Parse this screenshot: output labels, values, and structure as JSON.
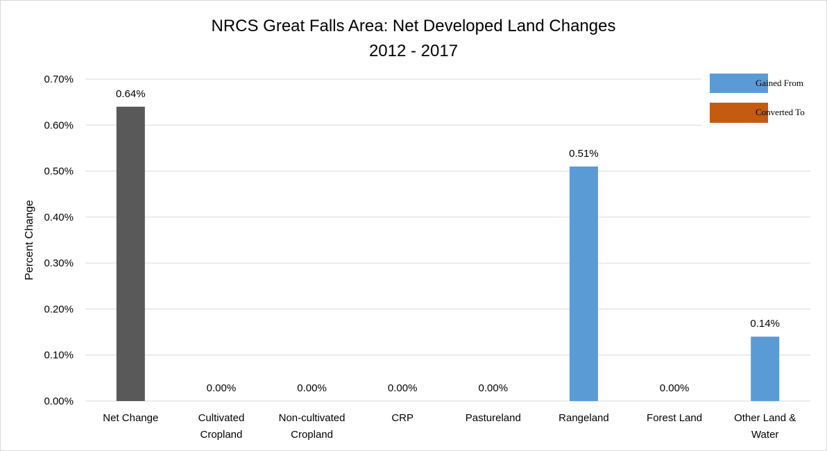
{
  "chart_data": {
    "type": "bar",
    "title": "NRCS Great Falls Area: Net Developed Land Changes",
    "subtitle": "2012 - 2017",
    "xlabel": "",
    "ylabel": "Percent Change",
    "ylim": [
      0,
      0.7
    ],
    "yticks": [
      0,
      0.1,
      0.2,
      0.3,
      0.4,
      0.5,
      0.6,
      0.7
    ],
    "ytick_labels": [
      "0.00%",
      "0.10%",
      "0.20%",
      "0.30%",
      "0.40%",
      "0.50%",
      "0.60%",
      "0.70%"
    ],
    "grid": true,
    "legend_position": "top-right",
    "legend": [
      {
        "name": "Gained From",
        "color": "#5b9bd5"
      },
      {
        "name": "Converted To",
        "color": "#c55a11"
      }
    ],
    "categories": [
      [
        "Net Change"
      ],
      [
        "Cultivated",
        "Cropland"
      ],
      [
        "Non-cultivated",
        "Cropland"
      ],
      [
        "CRP"
      ],
      [
        "Pastureland"
      ],
      [
        "Rangeland"
      ],
      [
        "Forest Land"
      ],
      [
        "Other Land &",
        "Water"
      ]
    ],
    "values": [
      0.64,
      0,
      0,
      0,
      0,
      0.51,
      0,
      0.14
    ],
    "data_labels": [
      "0.64%",
      "0.00%",
      "0.00%",
      "0.00%",
      "0.00%",
      "0.51%",
      "0.00%",
      "0.14%"
    ],
    "bar_colors": [
      "#595959",
      "#5b9bd5",
      "#5b9bd5",
      "#5b9bd5",
      "#5b9bd5",
      "#5b9bd5",
      "#5b9bd5",
      "#5b9bd5"
    ]
  }
}
